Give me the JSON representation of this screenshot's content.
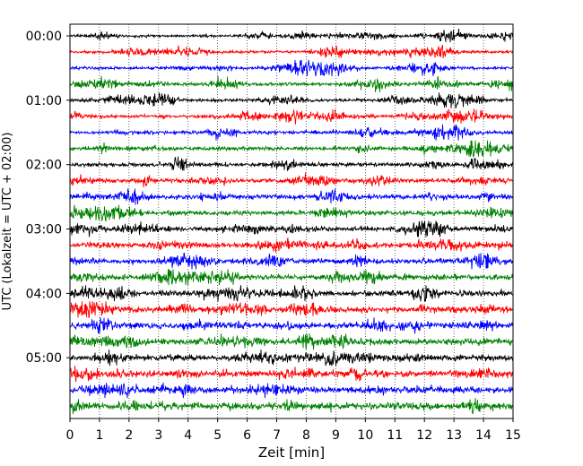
{
  "chart_data": {
    "type": "line",
    "title": "",
    "xlabel": "Zeit  [min]",
    "ylabel": "UTC (Lokalzeit = UTC + 02:00)",
    "xlim": [
      0,
      15
    ],
    "x_ticks": [
      "0",
      "1",
      "2",
      "3",
      "4",
      "5",
      "6",
      "7",
      "8",
      "9",
      "10",
      "11",
      "12",
      "13",
      "14",
      "15"
    ],
    "y_tick_labels": [
      "00:00",
      "01:00",
      "02:00",
      "03:00",
      "04:00",
      "05:00"
    ],
    "y_tick_trace_index": [
      0,
      4,
      8,
      12,
      16,
      20
    ],
    "trace_minutes": 15,
    "traces_per_hour": 4,
    "traces": [
      {
        "start": "00:00",
        "color": "#000000"
      },
      {
        "start": "00:15",
        "color": "#ff0000"
      },
      {
        "start": "00:30",
        "color": "#0000ff"
      },
      {
        "start": "00:45",
        "color": "#008000"
      },
      {
        "start": "01:00",
        "color": "#000000"
      },
      {
        "start": "01:15",
        "color": "#ff0000"
      },
      {
        "start": "01:30",
        "color": "#0000ff"
      },
      {
        "start": "01:45",
        "color": "#008000"
      },
      {
        "start": "02:00",
        "color": "#000000"
      },
      {
        "start": "02:15",
        "color": "#ff0000"
      },
      {
        "start": "02:30",
        "color": "#0000ff"
      },
      {
        "start": "02:45",
        "color": "#008000"
      },
      {
        "start": "03:00",
        "color": "#000000"
      },
      {
        "start": "03:15",
        "color": "#ff0000"
      },
      {
        "start": "03:30",
        "color": "#0000ff"
      },
      {
        "start": "03:45",
        "color": "#008000"
      },
      {
        "start": "04:00",
        "color": "#000000"
      },
      {
        "start": "04:15",
        "color": "#ff0000"
      },
      {
        "start": "04:30",
        "color": "#0000ff"
      },
      {
        "start": "04:45",
        "color": "#008000"
      },
      {
        "start": "05:00",
        "color": "#000000"
      },
      {
        "start": "05:15",
        "color": "#ff0000"
      },
      {
        "start": "05:30",
        "color": "#0000ff"
      },
      {
        "start": "05:45",
        "color": "#008000"
      }
    ],
    "vertical_grid": "dotted",
    "horizontal_grid": false,
    "colors": [
      "#000000",
      "#ff0000",
      "#0000ff",
      "#008000"
    ]
  }
}
